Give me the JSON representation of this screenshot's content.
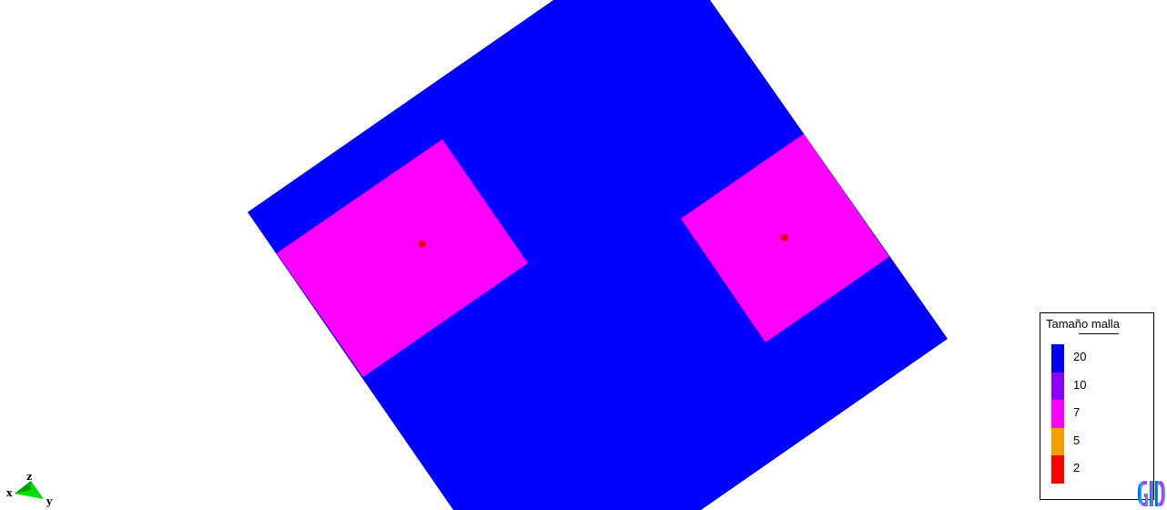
{
  "legend": {
    "title": "Tamaño malla",
    "entries": [
      {
        "label": "20",
        "color": "#0000ff"
      },
      {
        "label": "10",
        "color": "#8c00ff"
      },
      {
        "label": "7",
        "color": "#ff00ff"
      },
      {
        "label": "5",
        "color": "#f0a000"
      },
      {
        "label": "2",
        "color": "#ff0000"
      }
    ]
  },
  "axes": {
    "x": "x",
    "y": "y",
    "z": "z"
  },
  "colors": {
    "outer_domain": "#0000ff",
    "refined_region": "#ff00ff",
    "point_marker": "#ff0000",
    "triad": "#00e000"
  },
  "logo": {
    "name": "gid-logo-icon"
  }
}
